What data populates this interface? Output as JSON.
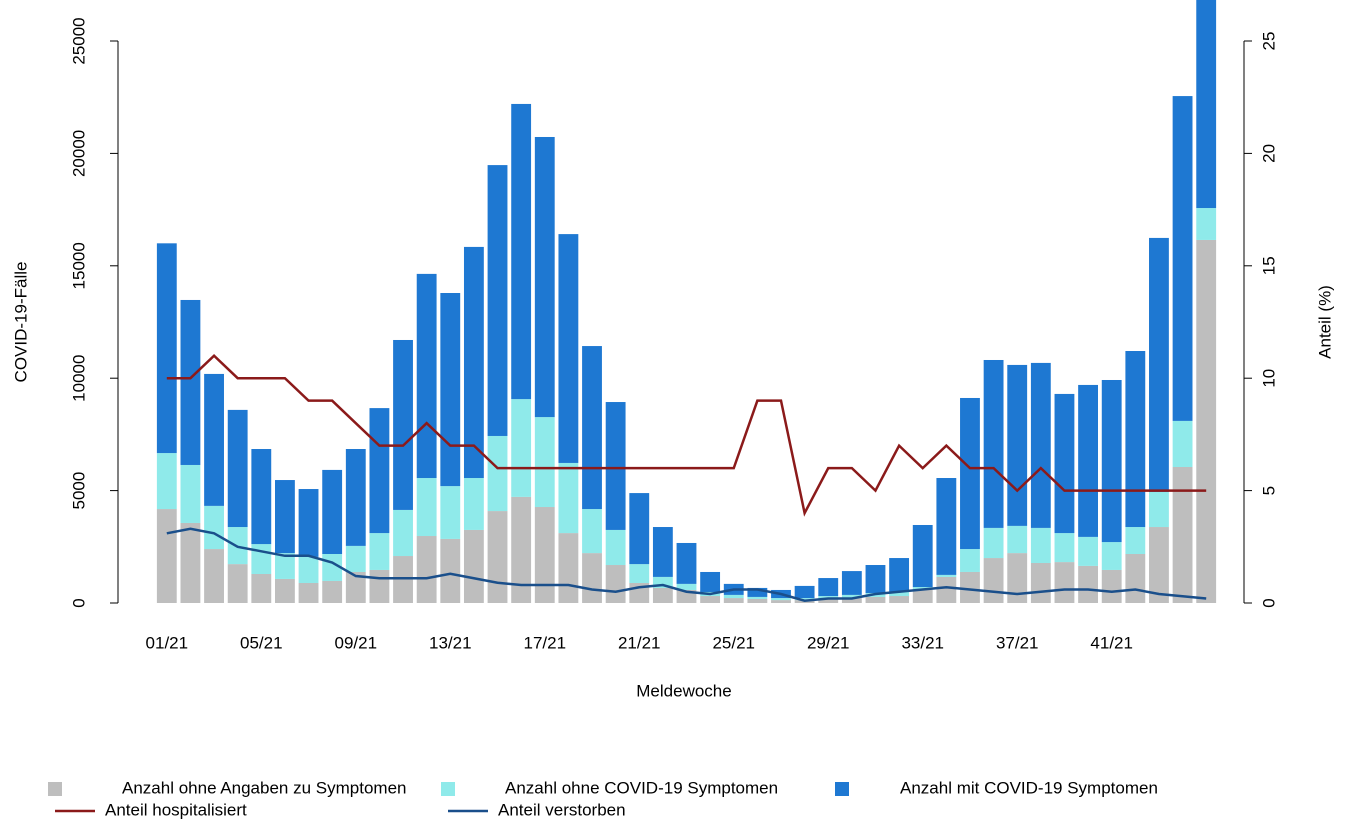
{
  "chart_data": {
    "type": "bar",
    "x_label": "Meldewoche",
    "y_label": "COVID-19-Fälle",
    "y2_label": "Anteil (%)",
    "categories": [
      "01/21",
      null,
      null,
      null,
      "05/21",
      null,
      null,
      null,
      "09/21",
      null,
      null,
      null,
      "13/21",
      null,
      null,
      null,
      "17/21",
      null,
      null,
      null,
      "21/21",
      null,
      null,
      null,
      "25/21",
      null,
      null,
      null,
      "29/21",
      null,
      null,
      null,
      "33/21",
      null,
      null,
      null,
      "37/21",
      null,
      null,
      null,
      "41/21",
      null,
      null,
      null,
      null
    ],
    "ylim": [
      0,
      25000
    ],
    "yticks": [
      0,
      5000,
      10000,
      15000,
      20000,
      25000
    ],
    "y2lim": [
      0,
      25
    ],
    "y2ticks": [
      0,
      5,
      10,
      15,
      20,
      25
    ],
    "stacked": true,
    "series": [
      {
        "name": "Anzahl ohne Angaben zu Symptomen",
        "color": "#bebebe",
        "type": "bar",
        "values": [
          4180,
          3560,
          2400,
          1730,
          1290,
          1070,
          890,
          980,
          1380,
          1470,
          2090,
          2980,
          2850,
          3250,
          4090,
          4720,
          4270,
          3110,
          2220,
          1690,
          890,
          670,
          580,
          310,
          220,
          180,
          130,
          130,
          180,
          220,
          270,
          310,
          580,
          1160,
          1380,
          2000,
          2220,
          1780,
          1820,
          1650,
          1470,
          2180,
          3380,
          6050,
          16150
        ]
      },
      {
        "name": "Anzahl ohne COVID-19 Symptomen",
        "color": "#8feaea",
        "type": "bar",
        "values": [
          2490,
          2580,
          1920,
          1650,
          1330,
          1150,
          1160,
          1200,
          1160,
          1640,
          2050,
          2580,
          2350,
          2310,
          3340,
          4350,
          4000,
          3120,
          1960,
          1560,
          840,
          490,
          270,
          180,
          140,
          90,
          90,
          90,
          130,
          140,
          170,
          180,
          130,
          90,
          1020,
          1340,
          1210,
          1560,
          1290,
          1290,
          1240,
          1200,
          1560,
          2050,
          1420
        ]
      },
      {
        "name": "Anzahl mit COVID-19 Symptomen",
        "color": "#1e78d2",
        "type": "bar",
        "values": [
          9330,
          7340,
          5870,
          5210,
          4230,
          3250,
          3020,
          3740,
          4310,
          5560,
          7560,
          9080,
          8590,
          10280,
          12050,
          13130,
          12460,
          10180,
          7250,
          5690,
          3160,
          2220,
          1820,
          890,
          490,
          400,
          360,
          540,
          800,
          1060,
          1250,
          1510,
          2760,
          4310,
          6720,
          7470,
          7160,
          7340,
          6190,
          6760,
          7210,
          7830,
          11300,
          14450,
          9430
        ]
      },
      {
        "name": "Anteil hospitalisiert",
        "color": "#8b1a1a",
        "type": "line",
        "axis": "y2",
        "values": [
          10,
          10,
          11,
          10,
          10,
          10,
          9,
          9,
          8,
          7,
          7,
          8,
          7,
          7,
          6,
          6,
          6,
          6,
          6,
          6,
          6,
          6,
          6,
          6,
          6,
          9,
          9,
          4,
          6,
          6,
          5,
          7,
          6,
          7,
          6,
          6,
          5,
          6,
          5,
          5,
          5,
          5,
          5,
          5,
          5
        ]
      },
      {
        "name": "Anteil verstorben",
        "color": "#1a4f8b",
        "type": "line",
        "axis": "y2",
        "values": [
          3.1,
          3.3,
          3.1,
          2.5,
          2.3,
          2.1,
          2.1,
          1.8,
          1.2,
          1.1,
          1.1,
          1.1,
          1.3,
          1.1,
          0.9,
          0.8,
          0.8,
          0.8,
          0.6,
          0.5,
          0.7,
          0.8,
          0.5,
          0.4,
          0.6,
          0.6,
          0.4,
          0.1,
          0.2,
          0.2,
          0.4,
          0.5,
          0.6,
          0.7,
          0.6,
          0.5,
          0.4,
          0.5,
          0.6,
          0.6,
          0.5,
          0.6,
          0.4,
          0.3,
          0.2
        ]
      }
    ]
  }
}
